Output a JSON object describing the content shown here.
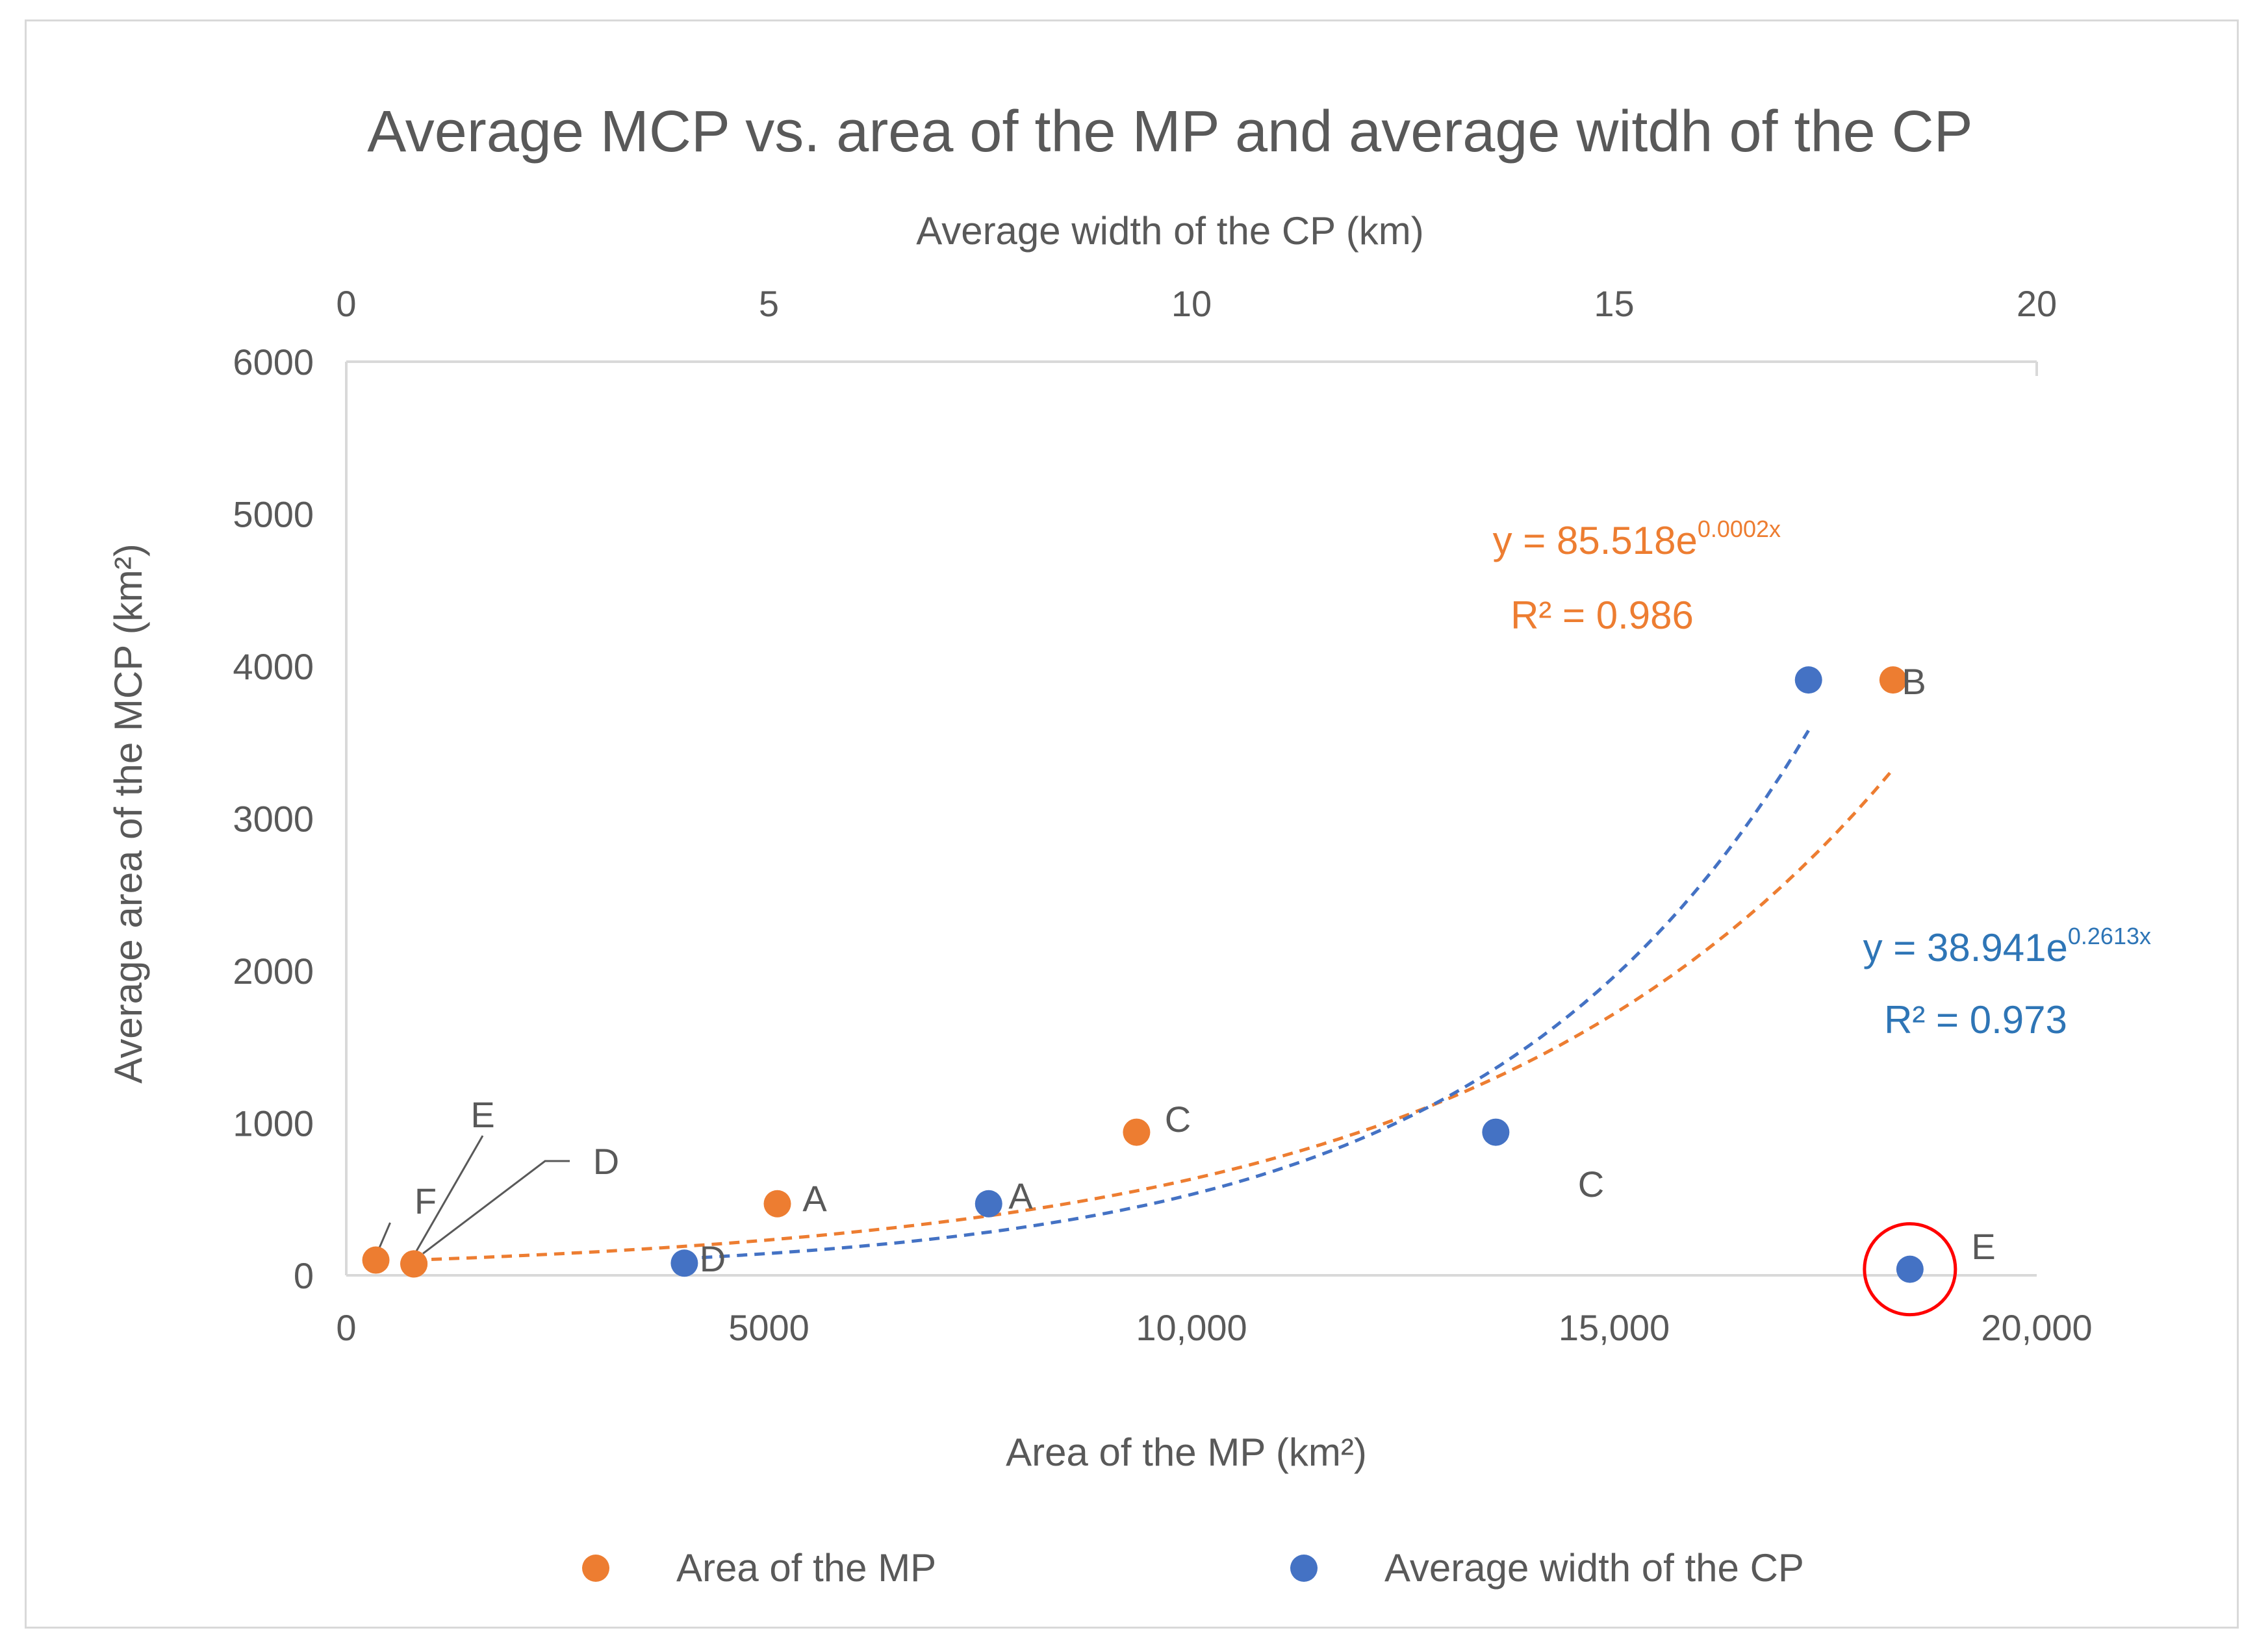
{
  "chart_data": {
    "type": "scatter",
    "title": "Average MCP vs. area of the MP and average witdh of the CP",
    "ylabel": "Average area of the MCP (km²)",
    "xlabel": "Area of the MP (km²)",
    "x2label": "Average width of the CP (km)",
    "ylim": [
      0,
      6000
    ],
    "xlim": [
      0,
      20000
    ],
    "x2lim": [
      0,
      20
    ],
    "grid": false,
    "legend_position": "bottom",
    "y_ticks": [
      "0",
      "1000",
      "2000",
      "3000",
      "4000",
      "5000",
      "6000"
    ],
    "x_ticks": [
      "0",
      "5000",
      "10,000",
      "15,000",
      "20,000"
    ],
    "x2_ticks": [
      "0",
      "5",
      "10",
      "15",
      "20"
    ],
    "series": [
      {
        "name": "Area of the MP",
        "axis": "bottom",
        "color": "#ed7d31",
        "points": [
          {
            "x": 350,
            "y": 100,
            "label": "F"
          },
          {
            "x": 800,
            "y": 75,
            "label": "E"
          },
          {
            "x": 800,
            "y": 75,
            "label": "D"
          },
          {
            "x": 5100,
            "y": 470,
            "label": "A"
          },
          {
            "x": 9350,
            "y": 940,
            "label": "C"
          },
          {
            "x": 18300,
            "y": 3910,
            "label": ""
          }
        ],
        "trendline": {
          "a": 85.518,
          "b": 0.0002,
          "x_from": 800,
          "x_to": 18300
        },
        "equation": "y = 85.518e",
        "equation_exp": "0.0002x",
        "r2": "R² = 0.986"
      },
      {
        "name": "Average width of the CP",
        "axis": "top",
        "color": "#4472c4",
        "points": [
          {
            "x": 4.0,
            "y": 80,
            "label": "D"
          },
          {
            "x": 7.6,
            "y": 470,
            "label": "A"
          },
          {
            "x": 13.6,
            "y": 940,
            "label": "C"
          },
          {
            "x": 17.3,
            "y": 3910,
            "label": "B"
          },
          {
            "x": 18.5,
            "y": 40,
            "label": "E"
          }
        ],
        "trendline": {
          "a": 38.941,
          "b": 0.2613,
          "x_from": 4.0,
          "x_to": 17.3
        },
        "equation": "y = 38.941e",
        "equation_exp": "0.2613x",
        "r2": "R² = 0.973"
      }
    ],
    "equation_colors": {
      "orange": "#ed7d31",
      "blue": "#2e75b6"
    },
    "highlight_circle_color": "#ff0000"
  }
}
